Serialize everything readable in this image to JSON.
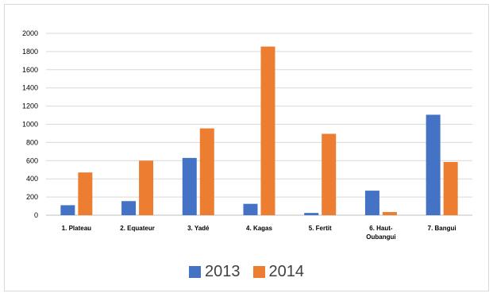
{
  "chart_data": {
    "type": "bar",
    "categories": [
      "1. Plateau",
      "2. Equateur",
      "3. Yadé",
      "4. Kagas",
      "5. Fertit",
      "6. Haut-Oubangui",
      "7. Bangui"
    ],
    "category_lines": [
      [
        "1. Plateau"
      ],
      [
        "2. Equateur"
      ],
      [
        "3. Yadé"
      ],
      [
        "4. Kagas"
      ],
      [
        "5. Fertit"
      ],
      [
        "6. Haut-",
        "Oubangui"
      ],
      [
        "7. Bangui"
      ]
    ],
    "series": [
      {
        "name": "2013",
        "color": "#4472c4",
        "values": [
          110,
          155,
          630,
          125,
          25,
          270,
          1105
        ]
      },
      {
        "name": "2014",
        "color": "#ed7d31",
        "values": [
          470,
          600,
          955,
          1855,
          895,
          35,
          585
        ]
      }
    ],
    "yticks": [
      "0",
      "200",
      "400",
      "600",
      "800",
      "1000",
      "1200",
      "1400",
      "1600",
      "1800",
      "2000"
    ],
    "ylim": [
      0,
      2000
    ],
    "grid": true,
    "legend_position": "bottom"
  }
}
